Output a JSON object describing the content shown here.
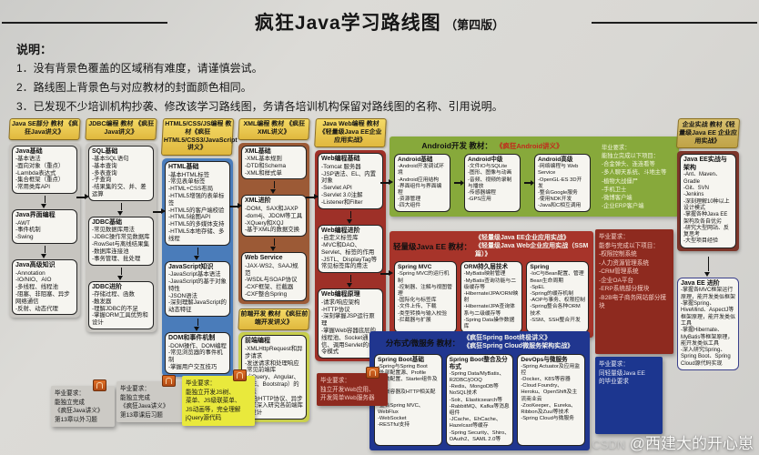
{
  "title": {
    "main": "疯狂Java学习路线图",
    "edition": "（第四版）"
  },
  "notes": {
    "heading": "说明：",
    "items": [
      "1．没有背景色覆盖的区域稍有难度，请谨慎尝试。",
      "2．路线图上背景色与对应教材的封面颜色相同。",
      "3．已发现不少培训机构抄袭、修改该学习路线图，务请各培训机构保留对路线图的名称、引用说明。"
    ]
  },
  "col1": {
    "header": "Java SE部分 教材 《疯狂Java讲义》",
    "b1": {
      "title": "Java基础",
      "items": [
        "-基本语法",
        "-面向对象（重点）",
        "-Lambda表达式",
        "-集合框架（重点）",
        "-常用类库API"
      ]
    },
    "b2": {
      "title": "Java界面编程",
      "items": [
        "-AWT",
        "-事件机制",
        "-Swing"
      ]
    },
    "b3": {
      "title": "Java高级知识",
      "items": [
        "-Annotation",
        "-IO/NIO、AIO",
        "-多线程、线程池",
        "-阻塞、非阻塞、异步网络通信",
        "-反射、动态代理"
      ]
    }
  },
  "col2": {
    "header": "JDBC编程 教材 《疯狂Java讲义》",
    "b1": {
      "title": "SQL基础",
      "items": [
        "-基本SQL语句",
        "-基本查询",
        "-多表查询",
        "-子查询",
        "-结果集的交、并、差运算"
      ]
    },
    "b2": {
      "title": "JDBC基础",
      "items": [
        "-常见数据库用法",
        "-JDBC操作常见数据库",
        "-RowSet与离线结果集",
        "-数据库连接池",
        "-事务管理、批处理"
      ]
    },
    "b3": {
      "title": "JDBC进阶",
      "items": [
        "-存储过程、函数",
        "-触发器",
        "-理解JDBC的不足",
        "-掌握ORM工具优势和设计"
      ]
    }
  },
  "col3": {
    "header": "HTML5/CSS/JS编程 教材《疯狂HTML5/CSS3/JavaScript讲义》",
    "b1": {
      "title": "HTML基础",
      "items": [
        "-基本HTML标签",
        "-常见表单标签",
        "-HTML+CSS布局",
        "-HTML5增强的表单标签",
        "-HTML5的客户端校验",
        "-HTML5绘图API",
        "-HTML5的多媒体支持",
        "-HTML5本地存储、多线程"
      ]
    },
    "b2": {
      "title": "JavaScript知识",
      "items": [
        "-JavaScript基本语法",
        "-JavaScript的基于对象特性",
        "-JSON语法",
        "-深刻理解JavaScript的动态特征"
      ]
    },
    "b3": {
      "title": "DOM和事件机制",
      "items": [
        "-DOM操作、DOM编程",
        "-常见浏览器的事件机制",
        "-掌握用户交互技巧"
      ]
    }
  },
  "col4": {
    "header": "XML编程 教材 《疯狂XML讲义》",
    "b1": {
      "title": "XML基础",
      "items": [
        "-XML基本规则",
        "-DTD和Schema",
        "-XML和样式单"
      ]
    },
    "b2": {
      "title": "XML进阶",
      "items": [
        "-DOM、SAX和JAXP",
        "-dom4j、JDOM等工具",
        "-XQuery和XQJ",
        "-基于XML的数据交换"
      ]
    },
    "b3": {
      "title": "Web Service",
      "items": [
        "-JAX-WS2、SAAJ规范",
        "-WSDL与SOAP协议",
        "-CXF框架、拦截器",
        "-CXF整合Spring"
      ]
    },
    "fe_header": "前端开发 教材 《疯狂前端开发讲义》",
    "b4": {
      "title": "前端编程",
      "items": [
        "-XMLHttpRequest和异步请求",
        "-发送请求和处理响应",
        "-常见前端库（jQuery、Angular、VUE、Bootstrap）的用法",
        "-结合HTTP协议、异步请求深入研究各前端库的设计"
      ]
    }
  },
  "col5": {
    "header": "Java Web编程 教材《轻量级Java EE企业应用实战》",
    "b1": {
      "title": "Web编程基础",
      "items": [
        "-Tomcat 服务器",
        "-JSP语法、EL、内置对象",
        "-Servlet API",
        "-Servlet 3.0注解",
        "-Listener和Filter"
      ]
    },
    "b2": {
      "title": "Web编程进阶",
      "items": [
        "-自定义标签库",
        "-MVC和DAO、Servlet、标签的作用",
        "-JSTL、DisplayTag等常见标签库的用法"
      ]
    },
    "b3": {
      "title": "Web编程原理",
      "items": [
        "-请求/响应架构",
        "-HTTP协议",
        "-深刻掌握JSP运行原理",
        "-掌握Web容器底层的线程池、Socket通信、调用Servlet的命令模式"
      ]
    }
  },
  "android": {
    "label": "Android开发 教材：",
    "book": "《疯狂Android讲义》",
    "b1": {
      "title": "Android基础",
      "items": [
        "-Android开发调试环境",
        "-Android应用结构",
        "-界面组件与界面编程",
        "-资源管理",
        "-四大组件"
      ]
    },
    "b2": {
      "title": "Android中级",
      "items": [
        "-文件IO与SQLite",
        "-图形、图像与动画",
        "-音频、视频的录制与播放",
        "-传感器编程",
        "-GPS应用"
      ]
    },
    "b3": {
      "title": "Android高级",
      "items": [
        "-网络编程与 Web Service",
        "-OpenGL-ES 3D开发",
        "-整合Google服务",
        "-使用NDK开发",
        "-Java和C相互调用"
      ]
    },
    "grad": {
      "lines": [
        "毕业要求：",
        "能独立完成以下项目：",
        "-合金弹头、连连看等",
        "-多人聊天系统、斗地主等",
        "-植物大战僵尸",
        "-手机卫士",
        "-微博客户端",
        "-企业ERP客户端"
      ]
    }
  },
  "ssm": {
    "label": "轻量级Java EE 教材：",
    "books": [
      "《轻量级Java EE企业应用实战》",
      "《轻量级Java Web企业应用实战（SSM篇）》"
    ],
    "b1": {
      "title": "Spring MVC",
      "items": [
        "-Spring MVC的运行机制",
        "-控制器、注解与视图管理",
        "-国际化与标签库",
        "-文件上传、下载",
        "-类型转换与输入校验",
        "-拦截器与扩展"
      ]
    },
    "b2": {
      "title": "ORM持久层技术",
      "items": [
        "-MyBatis映射管理",
        "-MyBatis查询功能与二级缓存等",
        "-Hibernate/JPA/ORM映射",
        "-Hibernate/JPA查询体系与二级缓存等",
        "-Spring Data操作数据库"
      ]
    },
    "b3": {
      "title": "Spring",
      "items": [
        "-IoC与Bean配置、管理Bean生命周期",
        "-SpEL",
        "-Spring的缓存机制",
        "-AOP与事务、权限控制",
        "-Spring整合各种ORM技术",
        "-SSM、SSH整合开发"
      ]
    }
  },
  "micro": {
    "label": "分布式/微服务 教材：",
    "books": [
      "《疯狂Spring Boot终极讲义》",
      "《疯狂Spring Cloud微服务架构实战》"
    ],
    "b1": {
      "title": "Spring Boot基础",
      "items": [
        "-Spring与Spring Boot",
        "-外部配置源、Profile",
        "-自动配置、Starter组件及原理",
        "-内嵌容器及HTTP相关配置",
        "-整合Spring MVC、WebFlux",
        "-WebSocket",
        "-RESTful支持"
      ]
    },
    "b2": {
      "title": "Spring Boot整合及分布式",
      "items": [
        "-Spring Data/MyBatis、R2DBC/jOOQ",
        "-Redis、MongoDB等NoSQL技术",
        "-Solr、Elasticsearch等",
        "-RabbitMQ、Kafka等消息组件",
        "-JCache、EhCache、Hazelcast等缓存",
        "-Spring Security、Shiro、OAuth2、SAML 2.0等"
      ]
    },
    "b3": {
      "title": "DevOps与微服务",
      "items": [
        "-Spring Actuator及应用监控",
        "-Docker、K8S等容器",
        "-Cloud Foundry、Heroku、OpenShift及主流商业云",
        "-ZooKeeper、Eureka、Ribbon及Zuul等技术",
        "-Spring Cloud与微服务"
      ]
    }
  },
  "ent": {
    "header": "企业实战 教材《轻量级Java EE 企业应用实战》",
    "b1": {
      "title": "Java EE实战与架构",
      "items": [
        "-Ant、Maven、Gradle",
        "-Git、SVN",
        "-Jenkins",
        "-深刻理解10种以上设计模式",
        "-掌握各种Java EE架构及各自优劣",
        "-研究大型网站、反复思考",
        "-大型项目经验"
      ]
    },
    "b2": {
      "title": "Java EE 进阶",
      "items": [
        "-掌握各MVC框架运行原理，能开发类似框架",
        "-掌握Spring、HiveMind、AspectJ等框架原理，能开发类似工具",
        "-掌握Hibernate、MyBatis等框架原理，能开发类似工具",
        "-深入研究Spring、Spring Boot、Spring Cloud源代码实现"
      ]
    }
  },
  "grads": {
    "g1": {
      "lines": [
        "毕业要求：",
        "能独立完成",
        "《疯狂Java讲义》",
        "第13章以外习题"
      ]
    },
    "g2": {
      "lines": [
        "毕业要求：",
        "能独立完成",
        "《疯狂Java讲义》",
        "第13章课后习题"
      ]
    },
    "g3": {
      "lines": [
        "毕业要求：",
        "能独立开发JS树、",
        "菜单、JS级联菜单、",
        "JS动画等，完全理解",
        "jQuery源代码"
      ]
    },
    "g4": {
      "lines": [
        "毕业要求：",
        "独立开发Web应用、",
        "开发简单Web服务器"
      ]
    },
    "g7": {
      "lines": [
        "毕业要求：",
        "能参与完成以下项目：",
        "-权限控制系统",
        "-人力资源管理系统",
        "-CRM管理系统",
        "-企业OA平台",
        "-ERP系统部分模块",
        "-B2B电子商务网站部分模块"
      ]
    },
    "g8": {
      "lines": [
        "毕业要求：",
        "同轻量级Java EE",
        "的毕业要求"
      ]
    }
  },
  "watermark": {
    "prefix": "CSDN",
    "name": "@西建大的开心崽"
  },
  "colors": {
    "paper": "#d9d8d4",
    "header_yellow": "#e8c94f",
    "column_gray": "#c7c5c0",
    "column_blue": "#4a7cba",
    "column_brown": "#9c5a36",
    "column_crimson": "#9e3028",
    "frontend_green": "#c9cf4d",
    "android_green": "#87a93b",
    "ssm_red": "#a7342a",
    "micro_blue": "#20368f",
    "enterprise_maroon": "#7c352a",
    "enterprise_tan": "#c9ad5c",
    "grad_yellow": "#e9e93c",
    "grad_darkred": "#8e2a1f",
    "grad_blue": "#1c368f",
    "clip_orange": "#dific"
  }
}
